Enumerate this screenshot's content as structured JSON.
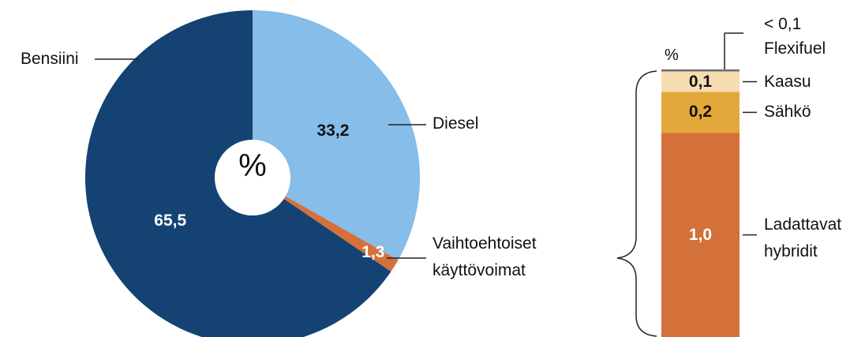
{
  "chart_data": [
    {
      "type": "pie",
      "center_label": "%",
      "categories": [
        "Diesel",
        "Vaihtoehtoiset\nkäyttövoimat",
        "Bensiini"
      ],
      "values": [
        33.2,
        1.3,
        65.5
      ],
      "value_labels": [
        "33,2",
        "1,3",
        "65,5"
      ],
      "colors": [
        "#86bde9",
        "#d4703a",
        "#144272"
      ]
    },
    {
      "type": "stacked-bar",
      "unit_label": "%",
      "categories": [
        "Flexifuel",
        "Kaasu",
        "Sähkö",
        "Ladattavat\nhybridit"
      ],
      "values": [
        0.01,
        0.1,
        0.2,
        1.0
      ],
      "value_labels": [
        "< 0,1",
        "0,1",
        "0,2",
        "1,0"
      ],
      "colors": [
        "#6e6e6e",
        "#f6dcb0",
        "#e3a83a",
        "#d4703a"
      ]
    }
  ]
}
